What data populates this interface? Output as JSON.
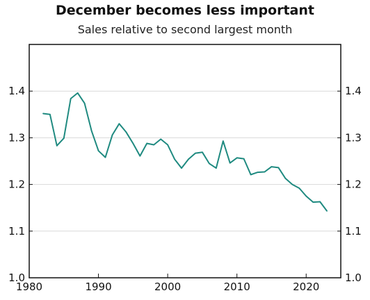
{
  "chart_data": {
    "type": "line",
    "title": "December becomes less important",
    "subtitle": "Sales relative to second largest month",
    "xlabel": "",
    "ylabel": "",
    "xlim": [
      1980,
      2025
    ],
    "ylim": [
      1.0,
      1.5
    ],
    "xticks": [
      1980,
      1990,
      2000,
      2010,
      2020
    ],
    "yticks": [
      1.0,
      1.1,
      1.2,
      1.3,
      1.4
    ],
    "ytick_labels": [
      "1.0",
      "1.1",
      "1.2",
      "1.3",
      "1.4"
    ],
    "grid": true,
    "line_color": "#1f8a80",
    "series": [
      {
        "x": [
          1982,
          1983,
          1984,
          1985,
          1986,
          1987,
          1988,
          1989,
          1990,
          1991,
          1992,
          1993,
          1994,
          1995,
          1996,
          1997,
          1998,
          1999,
          2000,
          2001,
          2002,
          2003,
          2004,
          2005,
          2006,
          2007,
          2008,
          2009,
          2010,
          2011,
          2012,
          2013,
          2014,
          2015,
          2016,
          2017,
          2018,
          2019,
          2020,
          2021,
          2022,
          2023
        ],
        "values": [
          1.352,
          1.35,
          1.283,
          1.299,
          1.384,
          1.396,
          1.374,
          1.315,
          1.272,
          1.258,
          1.306,
          1.33,
          1.312,
          1.288,
          1.261,
          1.288,
          1.285,
          1.297,
          1.285,
          1.254,
          1.235,
          1.254,
          1.267,
          1.269,
          1.245,
          1.235,
          1.293,
          1.246,
          1.257,
          1.255,
          1.221,
          1.226,
          1.227,
          1.238,
          1.236,
          1.213,
          1.2,
          1.192,
          1.175,
          1.162,
          1.163,
          1.143
        ]
      }
    ]
  }
}
